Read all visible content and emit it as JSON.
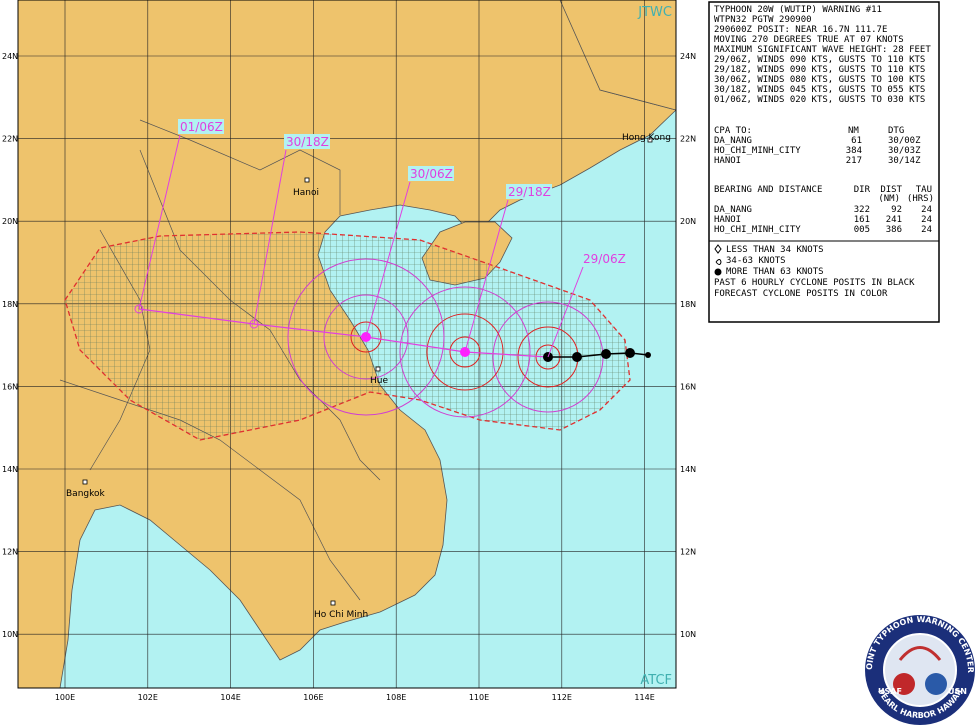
{
  "map": {
    "agency_top": "JTWC",
    "agency_bottom": "ATCF",
    "lat_labels": [
      "24N",
      "22N",
      "20N",
      "18N",
      "16N",
      "14N",
      "12N",
      "10N"
    ],
    "lon_labels": [
      "100E",
      "102E",
      "104E",
      "106E",
      "108E",
      "110E",
      "112E",
      "114E"
    ],
    "forecast_labels": [
      "01/06Z",
      "30/18Z",
      "30/06Z",
      "29/18Z",
      "29/06Z"
    ],
    "cities": [
      "Hanoi",
      "Hong Kong",
      "Hue",
      "Bangkok",
      "Ho Chi Minh"
    ]
  },
  "warning": {
    "lines": [
      "TYPHOON 20W (WUTIP) WARNING #11",
      "WTPN32 PGTW 290900",
      "290600Z POSIT: NEAR 16.7N 111.7E",
      "MOVING 270 DEGREES TRUE AT 07 KNOTS",
      "MAXIMUM SIGNIFICANT WAVE HEIGHT: 28 FEET",
      "29/06Z, WINDS 090 KTS, GUSTS TO 110 KTS",
      "29/18Z, WINDS 090 KTS, GUSTS TO 110 KTS",
      "30/06Z, WINDS 080 KTS, GUSTS TO 100 KTS",
      "30/18Z, WINDS 045 KTS, GUSTS TO 055 KTS",
      "01/06Z, WINDS 020 KTS, GUSTS TO 030 KTS"
    ]
  },
  "cpa": {
    "header": [
      "CPA TO:",
      "NM",
      "DTG"
    ],
    "rows": [
      [
        "DA_NANG",
        "61",
        "30/00Z"
      ],
      [
        "HO_CHI_MINH_CITY",
        "384",
        "30/03Z"
      ],
      [
        "HANOI",
        "217",
        "30/14Z"
      ]
    ]
  },
  "bearing": {
    "header": [
      "BEARING AND DISTANCE",
      "DIR",
      "DIST",
      "TAU"
    ],
    "subheader": [
      "(NM)",
      "(HRS)"
    ],
    "rows": [
      [
        "DA_NANG",
        "322",
        "92",
        "24"
      ],
      [
        "HANOI",
        "161",
        "241",
        "24"
      ],
      [
        "HO_CHI_MINH_CITY",
        "005",
        "386",
        "24"
      ]
    ]
  },
  "legend": {
    "lines": [
      "LESS THAN 34 KNOTS",
      "34-63 KNOTS",
      "MORE THAN 63 KNOTS",
      "PAST 6 HOURLY CYCLONE POSITS IN BLACK",
      "FORECAST CYCLONE POSITS IN COLOR"
    ]
  },
  "logo": {
    "top": "JOINT TYPHOON WARNING CENTER",
    "bottom": "PEARL HARBOR HAWAII",
    "left": "USAF",
    "right": "USN"
  }
}
